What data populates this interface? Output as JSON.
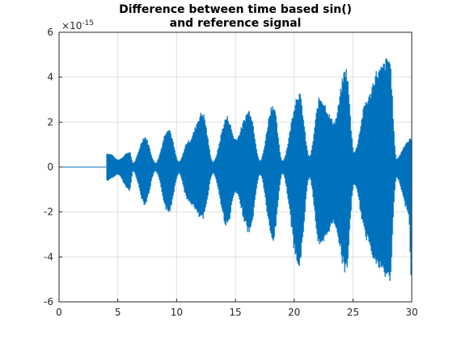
{
  "chart_data": {
    "type": "line",
    "title_lines": [
      "Difference between time based sin()",
      "and reference signal"
    ],
    "xlabel": "",
    "ylabel": "",
    "xlim": [
      0,
      30
    ],
    "ylim": [
      -6,
      6
    ],
    "xticks": [
      0,
      5,
      10,
      15,
      20,
      25,
      30
    ],
    "yticks": [
      -6,
      -4,
      -2,
      0,
      2,
      4,
      6
    ],
    "xtick_labels": [
      "0",
      "5",
      "10",
      "15",
      "20",
      "25",
      "30"
    ],
    "ytick_labels": [
      "-6",
      "-4",
      "-2",
      "0",
      "2",
      "4",
      "6"
    ],
    "y_exponent_label": "×10",
    "y_exponent_power": "-15",
    "grid": true,
    "color": "#0072bd",
    "series": [
      {
        "flat_segment": {
          "x": [
            0,
            4
          ],
          "y": 0
        },
        "envelope": {
          "x": [
            4.0,
            4.05,
            4.4,
            5.0,
            6.0,
            6.3,
            7.3,
            8.2,
            9.3,
            10.2,
            11.0,
            12.2,
            13.1,
            14.3,
            15.0,
            16.2,
            17.1,
            18.2,
            19.0,
            20.4,
            21.3,
            22.2,
            23.4,
            24.4,
            25.1,
            26.2,
            27.1,
            28.1,
            28.7,
            29.7,
            30.0
          ],
          "upper": [
            0.0,
            0.65,
            0.6,
            0.35,
            0.7,
            0.2,
            1.4,
            0.2,
            1.8,
            0.25,
            1.2,
            2.5,
            0.25,
            2.3,
            1.3,
            2.6,
            0.3,
            2.9,
            0.3,
            3.4,
            0.5,
            3.2,
            2.1,
            4.5,
            0.7,
            3.1,
            4.4,
            5.0,
            0.4,
            1.2,
            1.4
          ],
          "lower": [
            0.0,
            -0.65,
            -0.55,
            -0.35,
            -1.1,
            -0.2,
            -1.7,
            -0.2,
            -2.1,
            -0.3,
            -1.6,
            -2.4,
            -0.3,
            -2.7,
            -1.2,
            -3.0,
            -0.35,
            -3.4,
            -0.3,
            -4.6,
            -0.5,
            -3.7,
            -2.6,
            -4.8,
            -0.8,
            -3.3,
            -4.6,
            -5.2,
            -0.5,
            -2.0,
            -5.2
          ]
        }
      }
    ]
  }
}
